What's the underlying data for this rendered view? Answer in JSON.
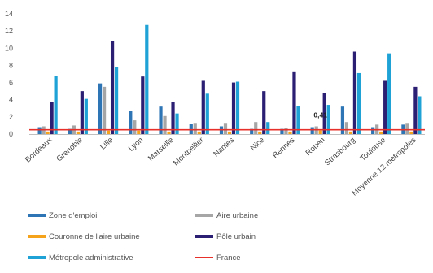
{
  "chart_data": {
    "type": "bar",
    "title": "",
    "xlabel": "",
    "ylabel": "",
    "ylim": [
      0,
      14
    ],
    "yticks": [
      0,
      2,
      4,
      6,
      8,
      10,
      12,
      14
    ],
    "grid": false,
    "legend_position": "bottom",
    "categories": [
      "Bordeaux",
      "Grenoble",
      "Lille",
      "Lyon",
      "Marseille",
      "Montpellier",
      "Nantes",
      "Nice",
      "Rennes",
      "Rouen",
      "Strasbourg",
      "Toulouse",
      "Moyenne 12 métropoles"
    ],
    "series": [
      {
        "name": "Zone d'emploi",
        "color": "#2e75b6",
        "values": [
          0.8,
          0.6,
          5.9,
          2.7,
          3.2,
          1.2,
          0.9,
          0.6,
          0.6,
          0.8,
          3.2,
          0.8,
          1.1
        ]
      },
      {
        "name": "Aire urbaine",
        "color": "#a6a6a6",
        "values": [
          0.9,
          1.0,
          5.5,
          1.6,
          2.1,
          1.3,
          1.3,
          1.4,
          0.7,
          0.9,
          1.4,
          1.1,
          1.3
        ]
      },
      {
        "name": "Couronne de l'aire urbaine",
        "color": "#f5a31a",
        "values": [
          0.3,
          0.3,
          0.4,
          0.4,
          0.3,
          0.3,
          0.3,
          0.3,
          0.3,
          0.41,
          0.3,
          0.3,
          0.3
        ]
      },
      {
        "name": "Pôle urbain",
        "color": "#2b1f73",
        "values": [
          3.7,
          5.0,
          10.8,
          6.7,
          3.7,
          6.2,
          6.0,
          5.0,
          7.3,
          4.8,
          9.6,
          6.2,
          5.5
        ]
      },
      {
        "name": "Métropole administrative",
        "color": "#1fa3d6",
        "values": [
          6.8,
          4.1,
          7.8,
          12.7,
          2.4,
          4.7,
          6.1,
          1.4,
          3.3,
          3.4,
          7.1,
          9.4,
          4.4
        ]
      }
    ],
    "reference_line": {
      "name": "France",
      "color": "#e8302a",
      "value": 0.5
    },
    "annotations": [
      {
        "category": "Rouen",
        "text": "0,41"
      }
    ]
  }
}
